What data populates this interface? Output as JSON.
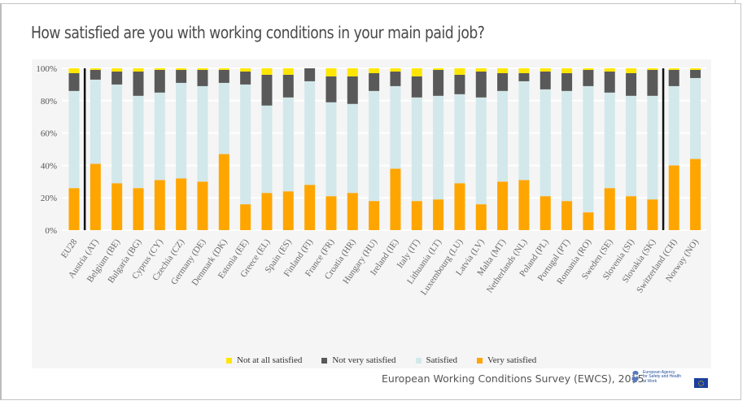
{
  "title": "How satisfied are you with working conditions in your main paid job?",
  "source": "European Working Conditions Survey (EWCS), 2015",
  "logo": {
    "icon": "eu-osha-logo-icon",
    "text_lines": [
      "European Agency",
      "for Safety and Health",
      "at Work"
    ]
  },
  "eu_flag": "eu-flag-icon",
  "colors": {
    "not_at_all_satisfied": "#ffe600",
    "not_very_satisfied": "#595959",
    "satisfied": "#d2e8ea",
    "very_satisfied": "#ffa500",
    "separator": "#111111"
  },
  "chart_data": {
    "type": "bar",
    "stacked": true,
    "title": "How satisfied are you with working conditions in your main paid job?",
    "xlabel": "",
    "ylabel": "",
    "ylim": [
      0,
      100
    ],
    "y_ticks": [
      "0%",
      "20%",
      "40%",
      "60%",
      "80%",
      "100%"
    ],
    "grid": true,
    "legend_position": "bottom",
    "separators_after": [
      "EU28",
      "Slovakia (SK)"
    ],
    "categories": [
      "EU28",
      "Austria (AT)",
      "Belgium (BE)",
      "Bulgaria (BG)",
      "Cyprus (CY)",
      "Czechia (CZ)",
      "Germany (DE)",
      "Denmark (DK)",
      "Estonia (EE)",
      "Greece (EL)",
      "Spain (ES)",
      "Finland (FI)",
      "France (FR)",
      "Croatia (HR)",
      "Hungary (HU)",
      "Ireland (IE)",
      "Italy (IT)",
      "Lithuania (LT)",
      "Luxembourg (LU)",
      "Latvia (LV)",
      "Malta (MT)",
      "Netherlands (NL)",
      "Poland (PL)",
      "Portugal (PT)",
      "Romania (RO)",
      "Sweden (SE)",
      "Slovenia (SI)",
      "Slovakia (SK)",
      "Switzerland (CH)",
      "Norway (NO)"
    ],
    "series": [
      {
        "name": "Very satisfied",
        "key": "very_satisfied",
        "values": [
          26,
          41,
          29,
          26,
          31,
          32,
          30,
          47,
          16,
          23,
          24,
          28,
          21,
          23,
          18,
          38,
          18,
          19,
          29,
          16,
          30,
          31,
          21,
          18,
          11,
          26,
          21,
          19,
          40,
          44
        ]
      },
      {
        "name": "Satisfied",
        "key": "satisfied",
        "values": [
          60,
          52,
          61,
          57,
          54,
          59,
          59,
          44,
          74,
          54,
          58,
          64,
          58,
          55,
          68,
          51,
          64,
          64,
          55,
          66,
          56,
          61,
          66,
          68,
          78,
          59,
          62,
          64,
          49,
          50
        ]
      },
      {
        "name": "Not very satisfied",
        "key": "not_very_satisfied",
        "values": [
          11,
          6,
          8,
          15,
          14,
          8,
          10,
          8,
          8,
          19,
          14,
          8,
          16,
          17,
          11,
          9,
          13,
          16,
          12,
          16,
          11,
          5,
          11,
          11,
          10,
          13,
          14,
          16,
          10,
          5
        ]
      },
      {
        "name": "Not at all satisfied",
        "key": "not_at_all_satisfied",
        "values": [
          3,
          1,
          2,
          2,
          1,
          1,
          1,
          1,
          2,
          4,
          4,
          0,
          5,
          5,
          3,
          2,
          5,
          1,
          4,
          2,
          3,
          3,
          2,
          3,
          1,
          2,
          3,
          1,
          1,
          1
        ]
      }
    ],
    "legend": [
      "Not at all satisfied",
      "Not very satisfied",
      "Satisfied",
      "Very satisfied"
    ]
  }
}
